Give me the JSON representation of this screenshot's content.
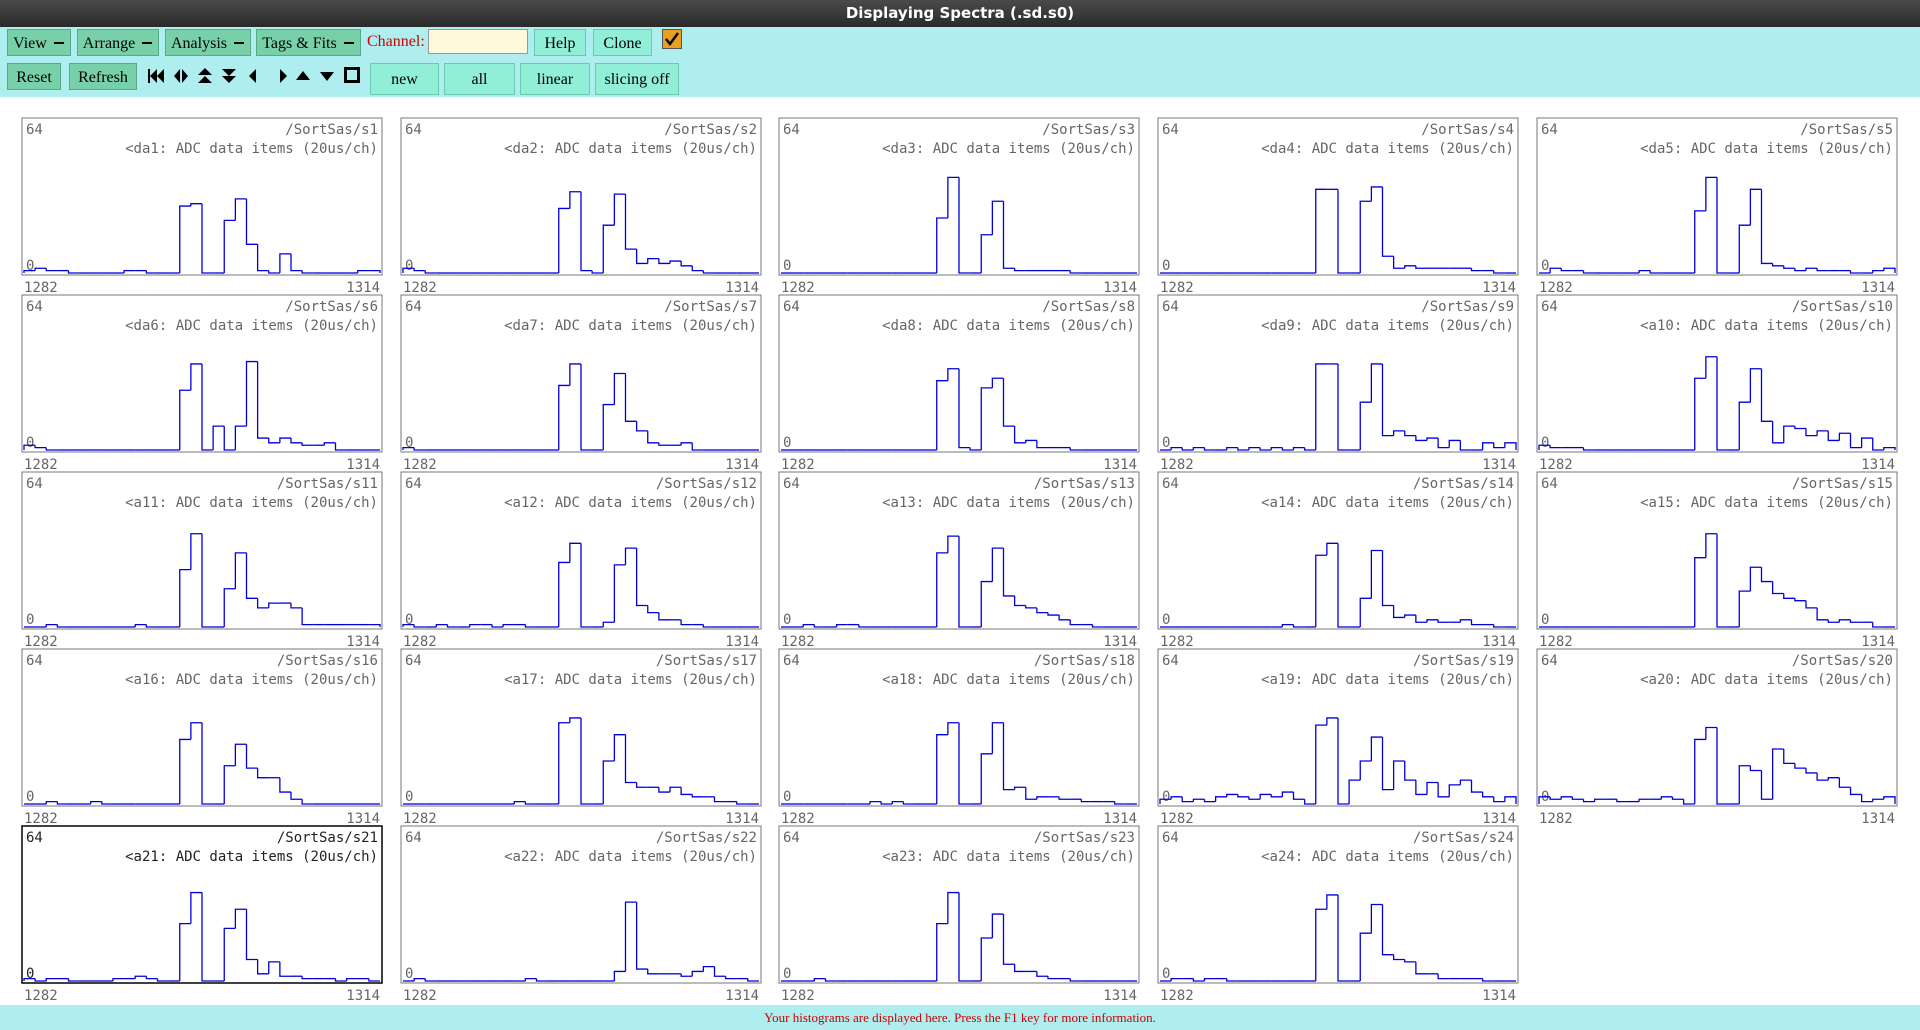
{
  "window": {
    "title": "Displaying Spectra (.sd.s0)"
  },
  "toolbar": {
    "menus": [
      "View",
      "Arrange",
      "Analysis",
      "Tags & Fits"
    ],
    "channel_label": "Channel:",
    "help": "Help",
    "clone": "Clone",
    "reset": "Reset",
    "refresh": "Refresh",
    "modes": [
      "new",
      "all",
      "linear",
      "slicing off"
    ]
  },
  "status": "Your histograms are displayed here. Press the F1 key for more information.",
  "panels": [
    {
      "name": "/SortSas/s1",
      "label": "<da1: ADC data items (20us/ch)",
      "ymax": 64,
      "ymin": 0,
      "xmin": 1282,
      "xmax": 1314,
      "counts": [
        1,
        2,
        1,
        1,
        0,
        0,
        0,
        0,
        0,
        1,
        1,
        0,
        0,
        0,
        28,
        29,
        0,
        0,
        22,
        31,
        12,
        1,
        0,
        8,
        1,
        0,
        0,
        0,
        0,
        0,
        1,
        1
      ]
    },
    {
      "name": "/SortSas/s2",
      "label": "<da2: ADC data items (20us/ch)",
      "ymax": 64,
      "ymin": 0,
      "xmin": 1282,
      "xmax": 1314,
      "counts": [
        2,
        1,
        0,
        0,
        0,
        0,
        0,
        0,
        0,
        0,
        0,
        0,
        0,
        0,
        27,
        34,
        1,
        0,
        20,
        33,
        10,
        4,
        6,
        4,
        5,
        3,
        1,
        0,
        0,
        0,
        0,
        0
      ]
    },
    {
      "name": "/SortSas/s3",
      "label": "<da3: ADC data items (20us/ch)",
      "ymax": 64,
      "ymin": 0,
      "xmin": 1282,
      "xmax": 1314,
      "counts": [
        0,
        0,
        0,
        0,
        0,
        0,
        0,
        0,
        0,
        0,
        0,
        0,
        0,
        0,
        23,
        40,
        0,
        0,
        16,
        30,
        2,
        1,
        1,
        1,
        1,
        1,
        0,
        0,
        0,
        0,
        0,
        0
      ]
    },
    {
      "name": "/SortSas/s4",
      "label": "<da4: ADC data items (20us/ch)",
      "ymax": 64,
      "ymin": 0,
      "xmin": 1282,
      "xmax": 1314,
      "counts": [
        0,
        0,
        0,
        0,
        0,
        0,
        0,
        0,
        0,
        0,
        0,
        0,
        0,
        0,
        35,
        35,
        0,
        0,
        30,
        36,
        7,
        2,
        3,
        2,
        2,
        2,
        2,
        2,
        1,
        1,
        0,
        0
      ]
    },
    {
      "name": "/SortSas/s5",
      "label": "<da5: ADC data items (20us/ch)",
      "ymax": 64,
      "ymin": 0,
      "xmin": 1282,
      "xmax": 1314,
      "counts": [
        0,
        2,
        1,
        1,
        0,
        0,
        0,
        0,
        0,
        1,
        0,
        0,
        0,
        0,
        26,
        40,
        0,
        0,
        20,
        35,
        4,
        3,
        2,
        1,
        2,
        1,
        1,
        1,
        0,
        0,
        1,
        2
      ]
    },
    {
      "name": "/SortSas/s6",
      "label": "<da6: ADC data items (20us/ch)",
      "ymax": 64,
      "ymin": 0,
      "xmin": 1282,
      "xmax": 1314,
      "counts": [
        2,
        1,
        0,
        0,
        0,
        0,
        0,
        0,
        0,
        0,
        0,
        0,
        0,
        0,
        25,
        36,
        0,
        10,
        0,
        10,
        37,
        5,
        3,
        5,
        3,
        2,
        2,
        3,
        0,
        0,
        0,
        0
      ]
    },
    {
      "name": "/SortSas/s7",
      "label": "<da7: ADC data items (20us/ch)",
      "ymax": 64,
      "ymin": 0,
      "xmin": 1282,
      "xmax": 1314,
      "counts": [
        1,
        0,
        0,
        0,
        0,
        0,
        0,
        0,
        0,
        0,
        0,
        0,
        0,
        0,
        27,
        36,
        0,
        0,
        19,
        32,
        12,
        8,
        3,
        2,
        2,
        3,
        0,
        0,
        0,
        0,
        0,
        0
      ]
    },
    {
      "name": "/SortSas/s8",
      "label": "<da8: ADC data items (20us/ch)",
      "ymax": 64,
      "ymin": 0,
      "xmin": 1282,
      "xmax": 1314,
      "counts": [
        0,
        0,
        0,
        0,
        0,
        0,
        0,
        0,
        0,
        0,
        0,
        0,
        0,
        0,
        29,
        34,
        1,
        0,
        26,
        30,
        10,
        3,
        4,
        1,
        1,
        1,
        0,
        0,
        0,
        0,
        0,
        0
      ]
    },
    {
      "name": "/SortSas/s9",
      "label": "<da9: ADC data items (20us/ch)",
      "ymax": 64,
      "ymin": 0,
      "xmin": 1282,
      "xmax": 1314,
      "counts": [
        0,
        1,
        0,
        1,
        0,
        0,
        1,
        0,
        1,
        0,
        1,
        0,
        1,
        0,
        36,
        36,
        0,
        0,
        20,
        36,
        6,
        8,
        6,
        4,
        5,
        1,
        4,
        0,
        0,
        3,
        1,
        3
      ]
    },
    {
      "name": "/SortSas/s10",
      "label": "<a10: ADC data items (20us/ch)",
      "ymax": 64,
      "ymin": 0,
      "xmin": 1282,
      "xmax": 1314,
      "counts": [
        2,
        1,
        1,
        1,
        0,
        0,
        0,
        0,
        0,
        0,
        0,
        0,
        0,
        0,
        30,
        39,
        0,
        0,
        20,
        34,
        12,
        3,
        10,
        9,
        6,
        8,
        4,
        7,
        1,
        5,
        0,
        1
      ]
    },
    {
      "name": "/SortSas/s11",
      "label": "<a11: ADC data items (20us/ch)",
      "ymax": 64,
      "ymin": 0,
      "xmin": 1282,
      "xmax": 1314,
      "counts": [
        0,
        0,
        1,
        0,
        0,
        0,
        0,
        0,
        0,
        0,
        1,
        0,
        0,
        0,
        24,
        39,
        0,
        0,
        16,
        31,
        12,
        8,
        10,
        10,
        8,
        1,
        1,
        1,
        1,
        1,
        1,
        1
      ]
    },
    {
      "name": "/SortSas/s12",
      "label": "<a12: ADC data items (20us/ch)",
      "ymax": 64,
      "ymin": 0,
      "xmin": 1282,
      "xmax": 1314,
      "counts": [
        1,
        0,
        0,
        1,
        0,
        0,
        1,
        1,
        0,
        1,
        1,
        0,
        0,
        0,
        27,
        35,
        0,
        0,
        2,
        26,
        33,
        9,
        6,
        3,
        3,
        1,
        1,
        0,
        0,
        0,
        0,
        0
      ]
    },
    {
      "name": "/SortSas/s13",
      "label": "<a13: ADC data items (20us/ch)",
      "ymax": 64,
      "ymin": 0,
      "xmin": 1282,
      "xmax": 1314,
      "counts": [
        0,
        0,
        1,
        0,
        0,
        1,
        1,
        0,
        0,
        0,
        0,
        0,
        0,
        0,
        31,
        38,
        0,
        0,
        19,
        33,
        13,
        9,
        8,
        6,
        5,
        3,
        1,
        1,
        0,
        0,
        0,
        0
      ]
    },
    {
      "name": "/SortSas/s14",
      "label": "<a14: ADC data items (20us/ch)",
      "ymax": 64,
      "ymin": 0,
      "xmin": 1282,
      "xmax": 1314,
      "counts": [
        0,
        0,
        0,
        0,
        0,
        0,
        0,
        0,
        0,
        0,
        0,
        1,
        0,
        0,
        30,
        35,
        0,
        0,
        12,
        32,
        9,
        4,
        5,
        2,
        3,
        2,
        2,
        3,
        1,
        1,
        0,
        0
      ]
    },
    {
      "name": "/SortSas/s15",
      "label": "<a15: ADC data items (20us/ch)",
      "ymax": 64,
      "ymin": 0,
      "xmin": 1282,
      "xmax": 1314,
      "counts": [
        0,
        0,
        0,
        0,
        0,
        0,
        0,
        0,
        0,
        0,
        0,
        0,
        0,
        0,
        29,
        39,
        0,
        0,
        15,
        25,
        19,
        14,
        12,
        11,
        8,
        3,
        2,
        3,
        2,
        2,
        0,
        0
      ]
    },
    {
      "name": "/SortSas/s16",
      "label": "<a16: ADC data items (20us/ch)",
      "ymax": 64,
      "ymin": 0,
      "xmin": 1282,
      "xmax": 1314,
      "counts": [
        0,
        0,
        1,
        0,
        0,
        0,
        1,
        0,
        0,
        0,
        0,
        0,
        0,
        0,
        27,
        34,
        0,
        0,
        16,
        25,
        15,
        11,
        11,
        5,
        2,
        0,
        0,
        0,
        0,
        0,
        0,
        0
      ]
    },
    {
      "name": "/SortSas/s17",
      "label": "<a17: ADC data items (20us/ch)",
      "ymax": 64,
      "ymin": 0,
      "xmin": 1282,
      "xmax": 1314,
      "counts": [
        0,
        0,
        0,
        0,
        0,
        0,
        0,
        0,
        0,
        0,
        1,
        0,
        0,
        0,
        34,
        36,
        0,
        0,
        18,
        29,
        9,
        7,
        7,
        5,
        7,
        4,
        3,
        3,
        1,
        1,
        0,
        0
      ]
    },
    {
      "name": "/SortSas/s18",
      "label": "<a18: ADC data items (20us/ch)",
      "ymax": 64,
      "ymin": 0,
      "xmin": 1282,
      "xmax": 1314,
      "counts": [
        0,
        0,
        0,
        0,
        0,
        0,
        0,
        0,
        1,
        0,
        1,
        0,
        0,
        0,
        29,
        34,
        0,
        0,
        21,
        34,
        6,
        7,
        2,
        3,
        3,
        2,
        2,
        1,
        1,
        1,
        0,
        0
      ]
    },
    {
      "name": "/SortSas/s19",
      "label": "<a19: ADC data items (20us/ch)",
      "ymax": 64,
      "ymin": 0,
      "xmin": 1282,
      "xmax": 1314,
      "counts": [
        2,
        3,
        1,
        2,
        1,
        3,
        4,
        3,
        2,
        4,
        3,
        5,
        2,
        0,
        33,
        36,
        0,
        10,
        18,
        28,
        6,
        18,
        10,
        4,
        9,
        3,
        8,
        10,
        5,
        3,
        1,
        3
      ]
    },
    {
      "name": "/SortSas/s20",
      "label": "<a20: ADC data items (20us/ch)",
      "ymax": 64,
      "ymin": 0,
      "xmin": 1282,
      "xmax": 1314,
      "counts": [
        3,
        2,
        3,
        2,
        1,
        2,
        2,
        1,
        1,
        2,
        2,
        3,
        2,
        0,
        27,
        32,
        0,
        0,
        16,
        14,
        2,
        23,
        17,
        15,
        13,
        10,
        11,
        7,
        4,
        1,
        2,
        3
      ]
    },
    {
      "name": "/SortSas/s21",
      "label": "<a21: ADC data items (20us/ch)",
      "ymax": 64,
      "ymin": 0,
      "xmin": 1282,
      "xmax": 1314,
      "selected": true,
      "counts": [
        1,
        0,
        1,
        1,
        0,
        0,
        0,
        0,
        1,
        1,
        2,
        1,
        0,
        0,
        24,
        37,
        0,
        0,
        22,
        30,
        9,
        3,
        8,
        2,
        2,
        1,
        1,
        1,
        0,
        1,
        1,
        0
      ]
    },
    {
      "name": "/SortSas/s22",
      "label": "<a22: ADC data items (20us/ch)",
      "ymax": 64,
      "ymin": 0,
      "xmin": 1282,
      "xmax": 1314,
      "counts": [
        0,
        1,
        0,
        0,
        0,
        0,
        0,
        0,
        0,
        0,
        0,
        1,
        0,
        0,
        0,
        0,
        0,
        0,
        0,
        4,
        33,
        5,
        3,
        3,
        3,
        2,
        4,
        6,
        2,
        1,
        1,
        0
      ]
    },
    {
      "name": "/SortSas/s23",
      "label": "<a23: ADC data items (20us/ch)",
      "ymax": 64,
      "ymin": 0,
      "xmin": 1282,
      "xmax": 1314,
      "counts": [
        0,
        0,
        0,
        1,
        0,
        0,
        0,
        0,
        0,
        0,
        0,
        0,
        0,
        0,
        24,
        37,
        0,
        0,
        18,
        28,
        7,
        4,
        4,
        2,
        1,
        1,
        0,
        0,
        0,
        0,
        0,
        0
      ]
    },
    {
      "name": "/SortSas/s24",
      "label": "<a24: ADC data items (20us/ch)",
      "ymax": 64,
      "ymin": 0,
      "xmin": 1282,
      "xmax": 1314,
      "counts": [
        0,
        1,
        1,
        0,
        1,
        1,
        0,
        0,
        0,
        0,
        0,
        0,
        0,
        0,
        30,
        36,
        0,
        0,
        20,
        32,
        11,
        9,
        8,
        3,
        3,
        1,
        1,
        1,
        1,
        0,
        0,
        0
      ]
    }
  ]
}
